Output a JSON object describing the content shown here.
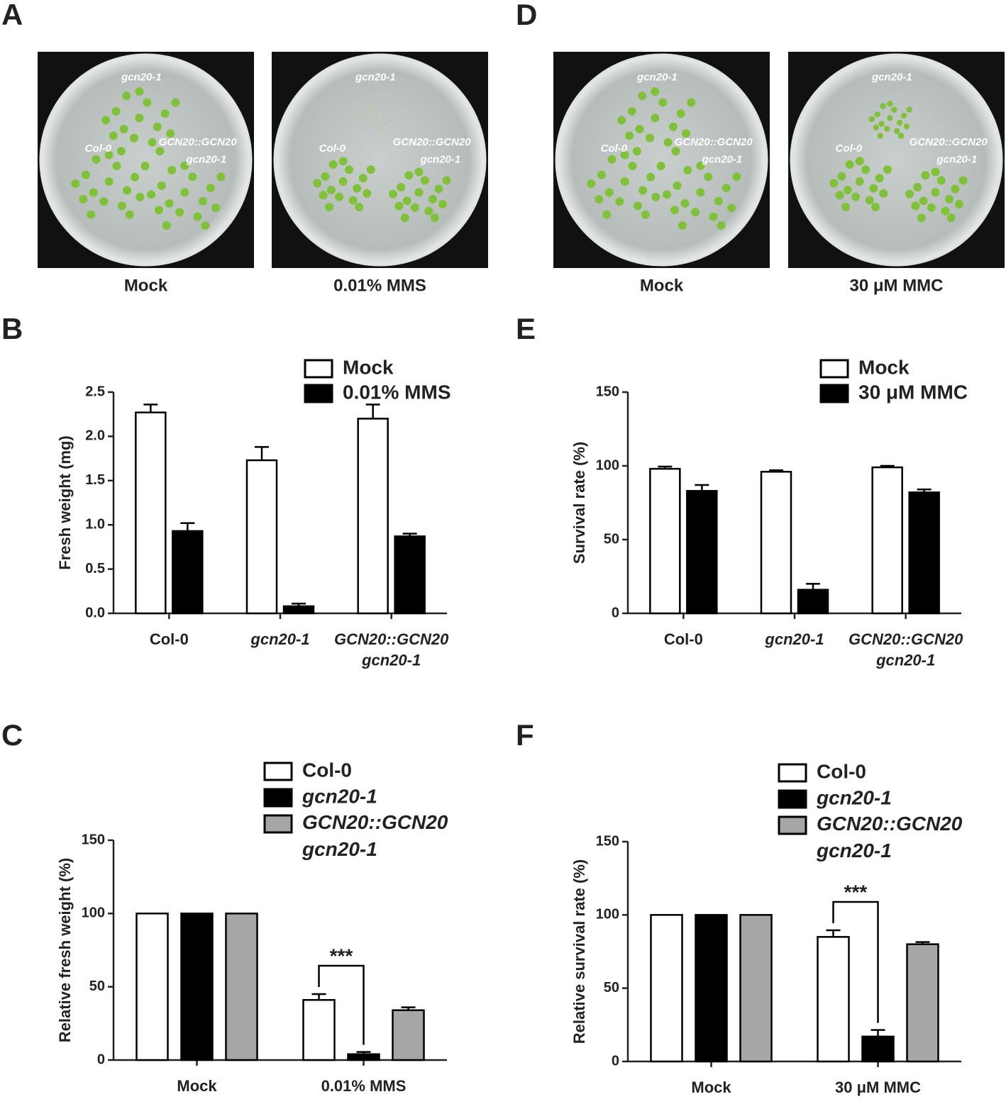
{
  "photo_panels": [
    {
      "panel": "A",
      "plates": [
        {
          "caption": "Mock",
          "labels": [
            "gcn20-1",
            "Col-0",
            "GCN20::GCN20",
            "gcn20-1"
          ]
        },
        {
          "caption": "0.01% MMS",
          "labels": [
            "gcn20-1",
            "Col-0",
            "GCN20::GCN20",
            "gcn20-1"
          ]
        }
      ]
    },
    {
      "panel": "D",
      "plates": [
        {
          "caption": "Mock",
          "labels": [
            "gcn20-1",
            "Col-0",
            "GCN20::GCN20",
            "gcn20-1"
          ]
        },
        {
          "caption": "30 μM MMC",
          "labels": [
            "gcn20-1",
            "Col-0",
            "GCN20::GCN20",
            "gcn20-1"
          ]
        }
      ]
    }
  ],
  "chart_data": [
    {
      "type": "bar",
      "panel": "B",
      "y_label": "Fresh weight (mg)",
      "categories": [
        "Col-0",
        "gcn20-1",
        "GCN20::GCN20\ngcn20-1"
      ],
      "series": [
        {
          "name": "Mock",
          "color": "#ffffff",
          "values": [
            2.27,
            1.73,
            2.2
          ],
          "errors": [
            0.09,
            0.15,
            0.16
          ]
        },
        {
          "name": "0.01% MMS",
          "color": "#000000",
          "values": [
            0.93,
            0.08,
            0.87
          ],
          "errors": [
            0.09,
            0.03,
            0.03
          ]
        }
      ],
      "ylim": [
        0,
        2.5
      ],
      "yticks": [
        {
          "value": 0,
          "label": "0.0"
        },
        0.5,
        {
          "value": 1,
          "label": "1.0"
        },
        1.5,
        {
          "value": 2,
          "label": "2.0"
        },
        2.5
      ]
    },
    {
      "type": "bar",
      "panel": "E",
      "y_label": "Survival rate (%)",
      "categories": [
        "Col-0",
        "gcn20-1",
        "GCN20::GCN20\ngcn20-1"
      ],
      "series": [
        {
          "name": "Mock",
          "color": "#ffffff",
          "values": [
            98,
            96,
            99
          ],
          "errors": [
            1.5,
            1,
            1
          ]
        },
        {
          "name": "30 μM MMC",
          "color": "#000000",
          "values": [
            83,
            16,
            82
          ],
          "errors": [
            4,
            4,
            2
          ]
        }
      ],
      "ylim": [
        0,
        150
      ],
      "yticks": [
        0,
        50,
        100,
        150
      ]
    },
    {
      "type": "bar",
      "panel": "C",
      "y_label": "Relative fresh weight (%)",
      "categories": [
        "Mock",
        "0.01% MMS"
      ],
      "series": [
        {
          "name": "Col-0",
          "color": "#ffffff",
          "values": [
            100,
            41
          ],
          "errors": [
            null,
            4
          ]
        },
        {
          "name": "gcn20-1",
          "color": "#000000",
          "values": [
            100,
            4
          ],
          "errors": [
            null,
            1.5
          ]
        },
        {
          "name": "GCN20::GCN20\ngcn20-1",
          "color": "#a6a6a6",
          "values": [
            100,
            34
          ],
          "errors": [
            null,
            2
          ]
        }
      ],
      "annotation": "***",
      "ylim": [
        0,
        150
      ],
      "yticks": [
        0,
        50,
        100,
        150
      ]
    },
    {
      "type": "bar",
      "panel": "F",
      "y_label": "Relative survival rate (%)",
      "categories": [
        "Mock",
        "30 μM MMC"
      ],
      "series": [
        {
          "name": "Col-0",
          "color": "#ffffff",
          "values": [
            100,
            85
          ],
          "errors": [
            null,
            4.5
          ]
        },
        {
          "name": "gcn20-1",
          "color": "#000000",
          "values": [
            100,
            17
          ],
          "errors": [
            null,
            4.5
          ]
        },
        {
          "name": "GCN20::GCN20\ngcn20-1",
          "color": "#a6a6a6",
          "values": [
            100,
            80
          ],
          "errors": [
            null,
            1.5
          ]
        }
      ],
      "annotation": "***",
      "ylim": [
        0,
        150
      ],
      "yticks": [
        0,
        50,
        100,
        150
      ]
    }
  ]
}
